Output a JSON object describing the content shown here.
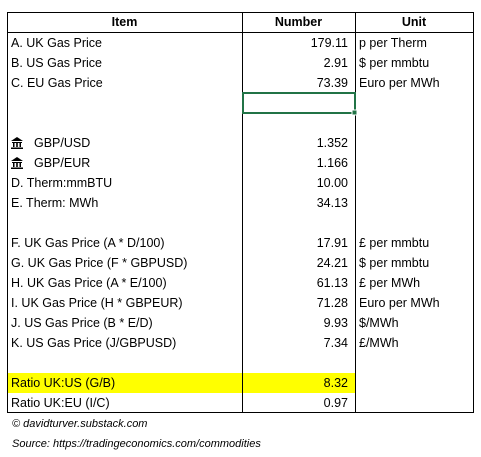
{
  "table": {
    "header": [
      "Item",
      "Number",
      "Unit"
    ],
    "rows": [
      [
        "A. UK Gas Price",
        "179.11",
        "p per Therm"
      ],
      [
        "B. US Gas Price",
        "2.91",
        "$ per mmbtu"
      ],
      [
        "C. EU Gas Price",
        "73.39",
        "Euro per MWh"
      ],
      [
        "GBP/USD",
        "1.352"
      ],
      [
        "GBP/EUR",
        "1.166"
      ],
      [
        "D. Therm:mmBTU",
        "10.00"
      ],
      [
        "E. Therm: MWh",
        "34.13"
      ],
      [
        "F. UK Gas Price (A * D/100)",
        "17.91",
        "£ per mmbtu"
      ],
      [
        "G. UK Gas Price (F * GBPUSD)",
        "24.21",
        "$ per mmbtu"
      ],
      [
        "H. UK Gas Price (A * E/100)",
        "61.13",
        "£ per MWh"
      ],
      [
        "I. UK Gas Price (H * GBPEUR)",
        "71.28",
        "Euro per MWh"
      ],
      [
        "J. US Gas Price (B * E/D)",
        "9.93",
        "$/MWh"
      ],
      [
        "K. US Gas Price (J/GBPUSD)",
        "7.34",
        "£/MWh"
      ],
      [
        "Ratio UK:US (G/B)",
        "8.32"
      ],
      [
        "Ratio UK:EU (I/C)",
        "0.97"
      ]
    ]
  },
  "footer": {
    "copyright": "© davidturver.substack.com",
    "source": "Source: https://tradingeconomics.com/commodities"
  }
}
